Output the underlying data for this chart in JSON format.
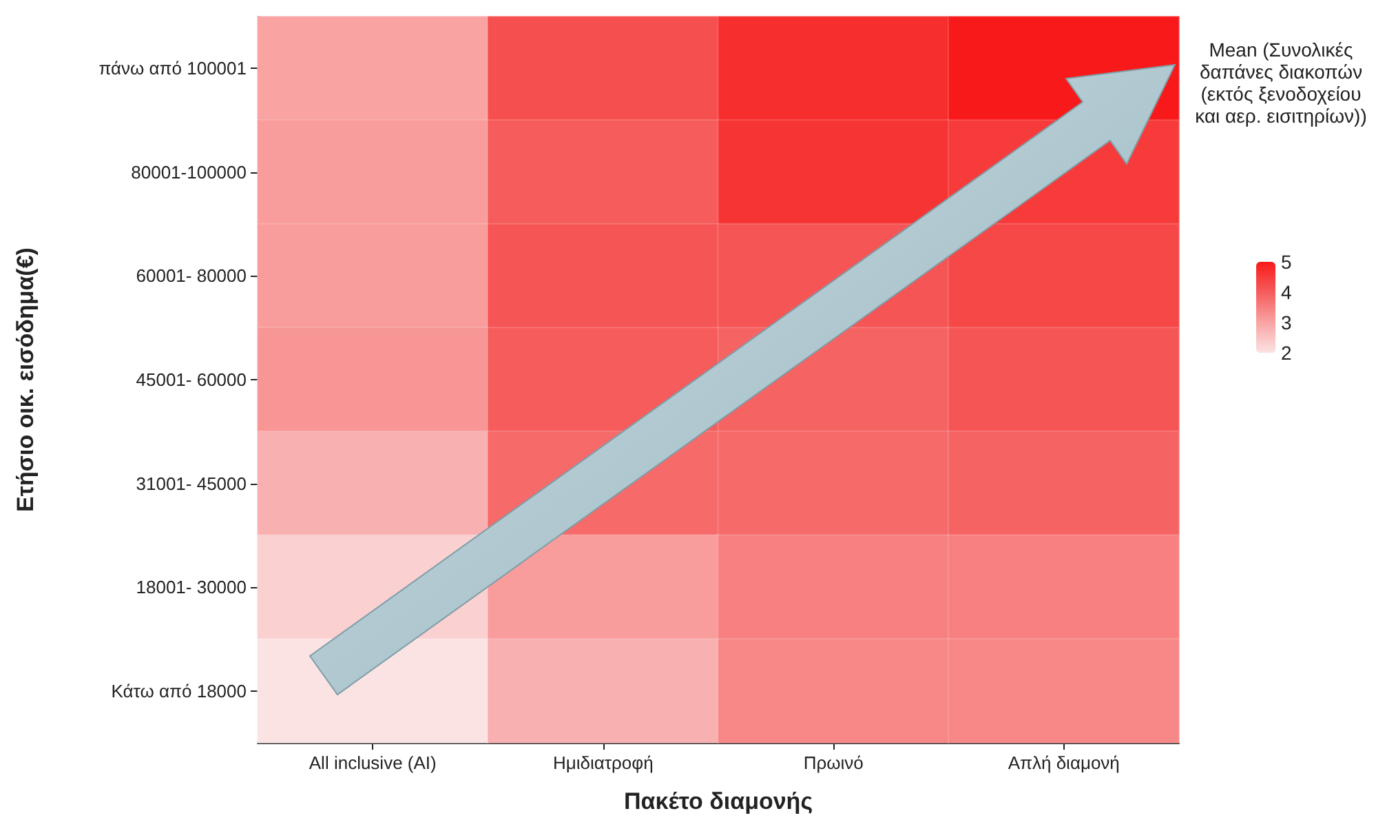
{
  "chart_data": {
    "type": "heatmap",
    "xlabel": "Πακέτο διαμονής",
    "ylabel": "Ετήσιο οικ. εισόδημα(€)",
    "clabel": "Mean (Συνολικές δαπάνες διακοπών (εκτός ξενοδοχείου και αερ. εισιτηρίων))",
    "categories": [
      "All inclusive (AI)",
      "Ημιδιατροφή",
      "Πρωινό",
      "Απλή διαμονή"
    ],
    "y_categories": [
      "πάνω από 100001",
      "80001-100000",
      "60001- 80000",
      "45001- 60000",
      "31001- 45000",
      "18001- 30000",
      "Κάτω από 18000"
    ],
    "cells": [
      [
        3.0,
        4.2,
        4.7,
        5.0
      ],
      [
        3.1,
        4.0,
        4.6,
        4.5
      ],
      [
        3.1,
        4.1,
        4.1,
        4.3
      ],
      [
        3.2,
        4.0,
        3.9,
        4.1
      ],
      [
        2.8,
        3.8,
        3.8,
        3.9
      ],
      [
        2.3,
        3.1,
        3.5,
        3.5
      ],
      [
        2.0,
        2.8,
        3.4,
        3.4
      ]
    ],
    "clim": [
      2,
      5
    ],
    "cticks": [
      5,
      4,
      3,
      2
    ]
  }
}
